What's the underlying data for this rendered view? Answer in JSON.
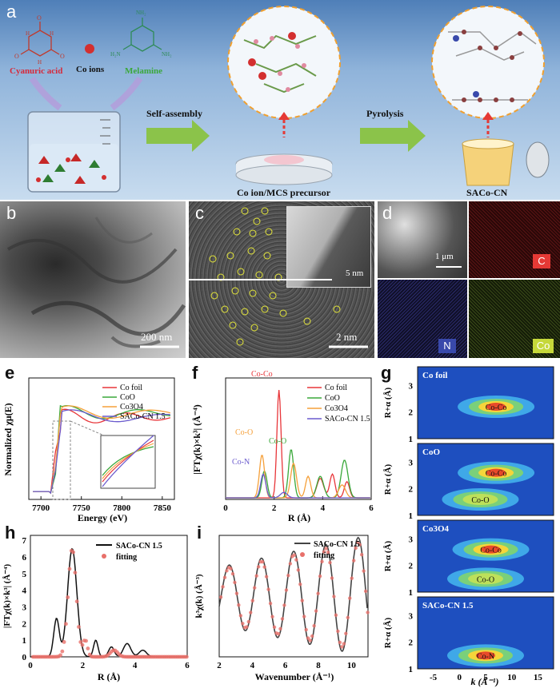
{
  "panel_a": {
    "label": "a",
    "cyanuric": "Cyanuric acid",
    "coions": "Co ions",
    "melamine": "Melamine",
    "self_assembly": "Self-assembly",
    "pyrolysis": "Pyrolysis",
    "precursor": "Co ion/MCS precursor",
    "product": "SACo-CN",
    "n": "N",
    "h": "H",
    "o": "O",
    "nh2": "NH2"
  },
  "panel_b": {
    "label": "b",
    "scale": "200 nm"
  },
  "panel_c": {
    "label": "c",
    "scale": "2 nm",
    "inset_scale": "5 nm"
  },
  "panel_d": {
    "label": "d",
    "scale": "1 μm",
    "tags": [
      "C",
      "N",
      "Co"
    ]
  },
  "colors": {
    "cofoil": "#e8363a",
    "coo": "#3aa83a",
    "co3o4": "#f5a03a",
    "saco": "#6a5acd",
    "fit": "#e8706a",
    "black": "#111111"
  },
  "chart_data": [
    {
      "type": "line",
      "panel": "e",
      "xlabel": "Energy (eV)",
      "ylabel": "Normalized χμ(E)",
      "xticks": [
        7700,
        7750,
        7800,
        7850
      ],
      "xlim": [
        7685,
        7865
      ],
      "legend": [
        "Co foil",
        "CoO",
        "Co3O4",
        "SACo-CN 1.5"
      ]
    },
    {
      "type": "line",
      "panel": "f",
      "xlabel": "R (Å)",
      "ylabel": "|FTχ(k)×k³| (Å⁻⁴)",
      "xticks": [
        0,
        2,
        4,
        6
      ],
      "xlim": [
        0,
        6
      ],
      "legend": [
        "Co foil",
        "CoO",
        "Co3O4",
        "SACo-CN 1.5"
      ],
      "annotations": [
        "Co-Co",
        "Co-O",
        "Co-O",
        "Co-N"
      ]
    },
    {
      "type": "heatmap",
      "panel": "g",
      "xlabel": "k (Å⁻¹)",
      "ylabel": "R+α (Å)",
      "xticks": [
        -5,
        0,
        5,
        10,
        15
      ],
      "yticks": [
        1,
        2,
        3
      ],
      "subpanels": [
        {
          "name": "Co foil",
          "labels": [
            "Co-Co"
          ]
        },
        {
          "name": "CoO",
          "labels": [
            "Co-Co",
            "Co-O"
          ]
        },
        {
          "name": "Co3O4",
          "labels": [
            "Co-Co",
            "Co-O"
          ]
        },
        {
          "name": "SACo-CN 1.5",
          "labels": [
            "Co-N"
          ]
        }
      ]
    },
    {
      "type": "line",
      "panel": "h",
      "xlabel": "R (Å)",
      "ylabel": "|FTχ(k)×k³| (Å⁻⁴)",
      "xticks": [
        0,
        2,
        4,
        6
      ],
      "yticks": [
        0,
        1,
        2,
        3,
        4,
        5,
        6,
        7
      ],
      "xlim": [
        0,
        6
      ],
      "ylim": [
        0,
        7.3
      ],
      "legend": [
        "SACo-CN 1.5",
        "fitting"
      ]
    },
    {
      "type": "line",
      "panel": "i",
      "xlabel": "Wavenumber (Å⁻¹)",
      "ylabel": "k³χ(k) (Å⁻³)",
      "xticks": [
        2,
        4,
        6,
        8,
        10
      ],
      "xlim": [
        2,
        11
      ],
      "legend": [
        "SACo-CN 1.5",
        "fitting"
      ]
    }
  ]
}
